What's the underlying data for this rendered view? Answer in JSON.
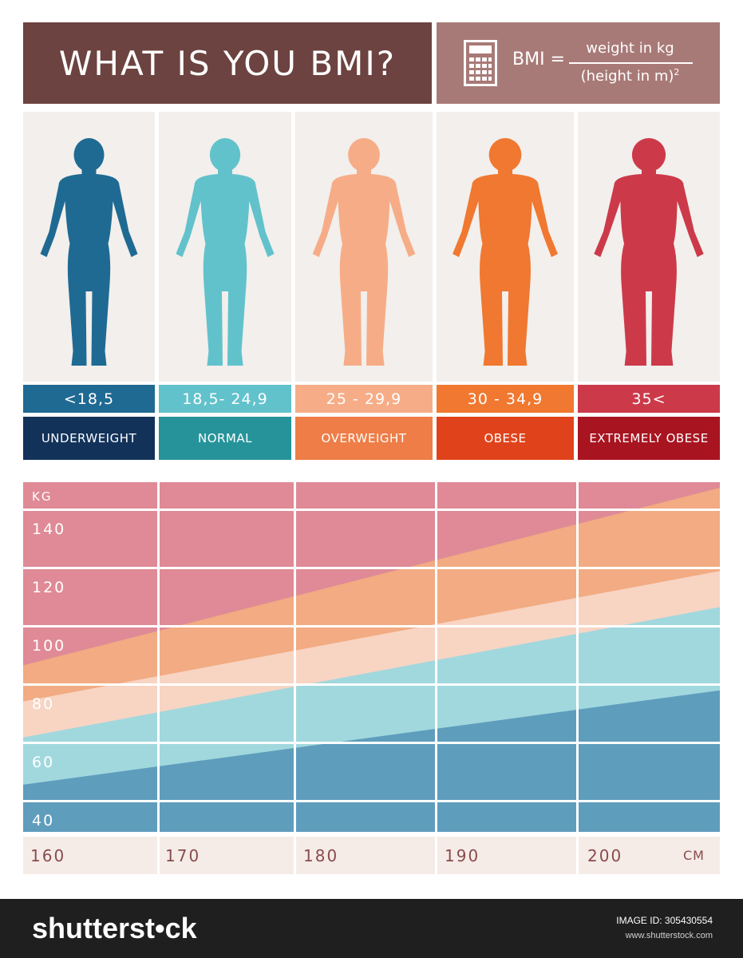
{
  "header": {
    "title": "WHAT IS YOU BMI?",
    "formula_lhs": "BMI =",
    "formula_numerator": "weight in kg",
    "formula_denominator": "(height in m)",
    "formula_exponent": "2",
    "icon": "calculator-icon"
  },
  "categories": [
    {
      "range": "<18,5",
      "label": "UNDERWEIGHT",
      "figure_color": "#1f6a93",
      "range_color": "#1f6a93",
      "label_color": "#12325a"
    },
    {
      "range": "18,5- 24,9",
      "label": "NORMAL",
      "figure_color": "#62c2cc",
      "range_color": "#62c2cc",
      "label_color": "#26939a"
    },
    {
      "range": "25 - 29,9",
      "label": "OVERWEIGHT",
      "figure_color": "#f6ad87",
      "range_color": "#f6ad87",
      "label_color": "#ee7d47"
    },
    {
      "range": "30 - 34,9",
      "label": "OBESE",
      "figure_color": "#f07830",
      "range_color": "#f07830",
      "label_color": "#e0431b"
    },
    {
      "range": "35<",
      "label": "EXTREMELY OBESE",
      "figure_color": "#cc3a4a",
      "range_color": "#cc3a4a",
      "label_color": "#a81420"
    }
  ],
  "chart_data": {
    "type": "area",
    "ylabel": "KG",
    "xlabel": "CM",
    "x_ticks": [
      160,
      170,
      180,
      190,
      200
    ],
    "y_ticks": [
      140,
      120,
      100,
      80,
      60,
      40
    ],
    "xlim": [
      160,
      210
    ],
    "ylim": [
      30,
      156
    ],
    "grid": true,
    "bands": [
      {
        "name": "UNDERWEIGHT",
        "color": "#5f9dbd",
        "lower_boundary": null
      },
      {
        "name": "NORMAL",
        "color": "#a1d8de",
        "lower_boundary": [
          [
            160,
            47
          ],
          [
            210,
            81
          ]
        ]
      },
      {
        "name": "OVERWEIGHT",
        "color": "#f8d4c3",
        "lower_boundary": [
          [
            160,
            64
          ],
          [
            210,
            111
          ]
        ]
      },
      {
        "name": "OBESE",
        "color": "#f2ab82",
        "lower_boundary": [
          [
            160,
            77
          ],
          [
            210,
            124
          ]
        ]
      },
      {
        "name": "EXTREMELY OBESE",
        "color": "#df8a96",
        "lower_boundary": [
          [
            160,
            90
          ],
          [
            210,
            154
          ]
        ]
      }
    ]
  },
  "footer": {
    "brand": "shutterst•ck",
    "image_id": "IMAGE ID: 305430554",
    "site": "www.shutterstock.com"
  }
}
